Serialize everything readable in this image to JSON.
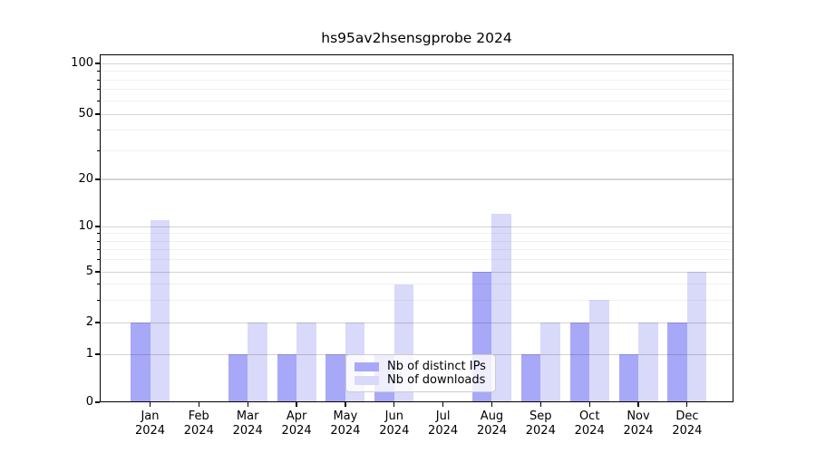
{
  "title": "hs95av2hsensgprobe 2024",
  "chart_data": {
    "type": "bar",
    "title": "hs95av2hsensgprobe 2024",
    "categories": [
      "Jan",
      "Feb",
      "Mar",
      "Apr",
      "May",
      "Jun",
      "Jul",
      "Aug",
      "Sep",
      "Oct",
      "Nov",
      "Dec"
    ],
    "year_label": "2024",
    "series": [
      {
        "name": "Nb of distinct IPs",
        "color": "#a8a8f8",
        "values": [
          2,
          0,
          1,
          1,
          1,
          1,
          0,
          5,
          1,
          2,
          1,
          2
        ]
      },
      {
        "name": "Nb of downloads",
        "color": "#d9d9fa",
        "values": [
          11,
          0,
          2,
          2,
          2,
          4,
          0,
          12,
          2,
          3,
          2,
          5
        ]
      }
    ],
    "y_axis": {
      "scale": "log-like",
      "major_ticks": [
        0,
        1,
        2,
        5,
        10,
        20,
        50,
        100
      ],
      "minor_gridlines": [
        3,
        4,
        6,
        7,
        8,
        9,
        30,
        40,
        60,
        70,
        80,
        90
      ],
      "anchors": [
        [
          0,
          0
        ],
        [
          1,
          0.138
        ],
        [
          2,
          0.229
        ],
        [
          5,
          0.375
        ],
        [
          10,
          0.505
        ],
        [
          20,
          0.641
        ],
        [
          50,
          0.828
        ],
        [
          100,
          0.974
        ]
      ]
    },
    "legend": {
      "entries": [
        "Nb of distinct IPs",
        "Nb of downloads"
      ],
      "position": "lower center"
    },
    "grid": true
  }
}
